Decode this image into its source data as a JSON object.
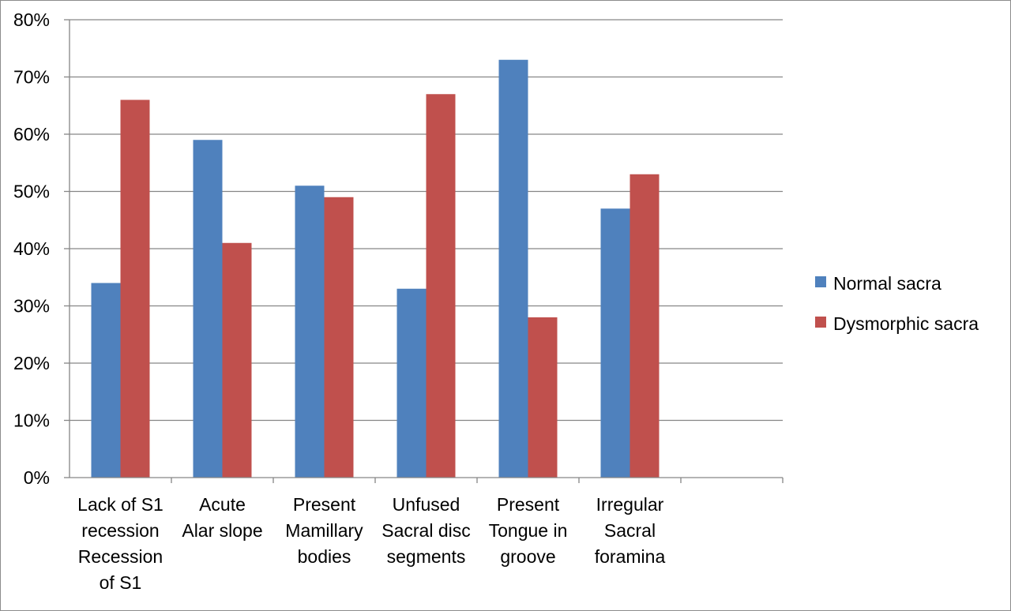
{
  "chart_data": {
    "type": "bar",
    "title": "",
    "xlabel": "",
    "ylabel": "",
    "ylim": [
      0,
      80
    ],
    "y_tick_format": "percent",
    "y_ticks": [
      "0%",
      "10%",
      "20%",
      "30%",
      "40%",
      "50%",
      "60%",
      "70%",
      "80%"
    ],
    "grid": true,
    "legend_position": "right",
    "categories": [
      [
        "Lack of S1",
        "recession",
        "Recession",
        "of S1"
      ],
      [
        "Acute",
        "Alar slope"
      ],
      [
        "Present",
        "Mamillary",
        "bodies"
      ],
      [
        "Unfused",
        "Sacral disc",
        "segments"
      ],
      [
        "Present",
        "Tongue in",
        "groove"
      ],
      [
        "Irregular",
        "Sacral",
        "foramina"
      ],
      [
        ""
      ]
    ],
    "series": [
      {
        "name": "Normal sacra",
        "color": "#4f81bd",
        "values": [
          34,
          59,
          51,
          33,
          73,
          47,
          null
        ]
      },
      {
        "name": "Dysmorphic sacra",
        "color": "#c0504d",
        "values": [
          66,
          41,
          49,
          67,
          28,
          53,
          null
        ]
      }
    ]
  }
}
